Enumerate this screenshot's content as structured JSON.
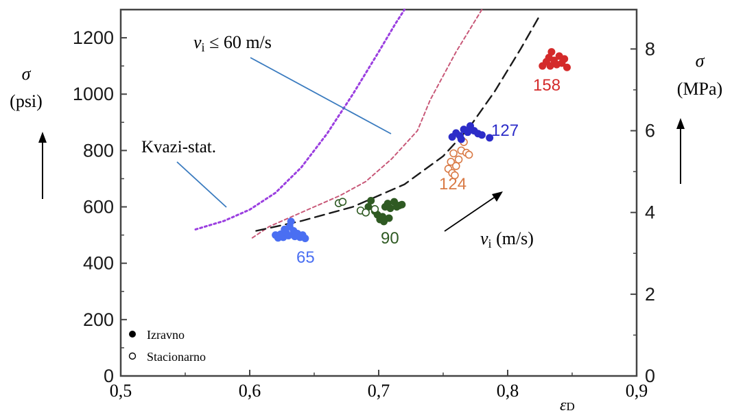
{
  "chart_data": {
    "type": "scatter",
    "xlabel": "ε",
    "xlabel_sub": "D",
    "xlim": [
      0.5,
      0.9
    ],
    "x_ticks": [
      0.5,
      0.6,
      0.7,
      0.8,
      0.9
    ],
    "x_tick_labels": [
      "0,5",
      "0,6",
      "0,7",
      "0,8",
      "0,9"
    ],
    "y_left": {
      "symbol": "σ",
      "unit": "(psi)",
      "lim": [
        0,
        1300
      ],
      "ticks": [
        0,
        200,
        400,
        600,
        800,
        1000,
        1200
      ],
      "tick_labels": [
        "0",
        "200",
        "400",
        "600",
        "800",
        "1000",
        "1200"
      ]
    },
    "y_right": {
      "symbol": "σ",
      "unit": "(MPa)",
      "ticks": [
        0,
        2,
        4,
        6,
        8
      ],
      "tick_labels": [
        "0",
        "2",
        "4",
        "6",
        "8"
      ]
    },
    "annotations": {
      "vi_limit": {
        "prefix": "v",
        "sub": "i",
        "suffix": " ≤ 60 m/s"
      },
      "kvazi": "Kvazi-stat.",
      "vi_arrow": {
        "prefix": "v",
        "sub": "i",
        "suffix": " (m/s)"
      }
    },
    "legend": {
      "position": "bottom-left",
      "entries": [
        {
          "label": "Izravno",
          "marker": "filled"
        },
        {
          "label": "Stacionarno",
          "marker": "open"
        }
      ]
    },
    "curves": [
      {
        "style": "dotted",
        "color": "#9b3fe0",
        "x": [
          0.558,
          0.58,
          0.6,
          0.62,
          0.64,
          0.66,
          0.68,
          0.7,
          0.713,
          0.72
        ],
        "y": [
          520,
          550,
          590,
          650,
          740,
          860,
          1000,
          1150,
          1250,
          1300
        ]
      },
      {
        "style": "short-dash",
        "color": "#c85878",
        "x": [
          0.602,
          0.615,
          0.63,
          0.65,
          0.67,
          0.69,
          0.71,
          0.73,
          0.74,
          0.76,
          0.78
        ],
        "y": [
          490,
          530,
          560,
          600,
          640,
          690,
          770,
          870,
          980,
          1150,
          1300
        ]
      },
      {
        "style": "long-dash",
        "color": "#1a1a1a",
        "x": [
          0.605,
          0.64,
          0.68,
          0.72,
          0.75,
          0.77,
          0.79,
          0.81,
          0.825
        ],
        "y": [
          515,
          550,
          600,
          680,
          780,
          880,
          1010,
          1160,
          1280
        ]
      }
    ],
    "groups": [
      {
        "label": "65",
        "color": "#4a6ff2",
        "filled": [
          [
            0.62,
            500
          ],
          [
            0.622,
            490
          ],
          [
            0.624,
            503
          ],
          [
            0.626,
            492
          ],
          [
            0.628,
            510
          ],
          [
            0.63,
            498
          ],
          [
            0.631,
            530
          ],
          [
            0.632,
            548
          ],
          [
            0.634,
            515
          ],
          [
            0.635,
            495
          ],
          [
            0.637,
            505
          ],
          [
            0.639,
            492
          ],
          [
            0.641,
            500
          ],
          [
            0.643,
            488
          ],
          [
            0.627,
            520
          ]
        ],
        "open": []
      },
      {
        "label": "90",
        "color": "#2f5a23",
        "filled": [
          [
            0.692,
            600
          ],
          [
            0.694,
            622
          ],
          [
            0.697,
            585
          ],
          [
            0.699,
            572
          ],
          [
            0.701,
            555
          ],
          [
            0.703,
            565
          ],
          [
            0.705,
            600
          ],
          [
            0.707,
            612
          ],
          [
            0.709,
            595
          ],
          [
            0.712,
            618
          ],
          [
            0.714,
            600
          ],
          [
            0.716,
            605
          ],
          [
            0.704,
            548
          ],
          [
            0.708,
            560
          ],
          [
            0.718,
            608
          ]
        ],
        "open": [
          [
            0.669,
            613
          ],
          [
            0.672,
            618
          ],
          [
            0.686,
            587
          ],
          [
            0.69,
            580
          ],
          [
            0.697,
            592
          ]
        ]
      },
      {
        "label": "124",
        "color": "#d97a45",
        "open": [
          [
            0.754,
            735
          ],
          [
            0.756,
            760
          ],
          [
            0.758,
            790
          ],
          [
            0.76,
            745
          ],
          [
            0.762,
            768
          ],
          [
            0.764,
            800
          ],
          [
            0.766,
            830
          ],
          [
            0.768,
            792
          ],
          [
            0.77,
            785
          ],
          [
            0.757,
            720
          ],
          [
            0.759,
            712
          ]
        ],
        "filled": []
      },
      {
        "label": "127",
        "color": "#2c2cc8",
        "filled": [
          [
            0.757,
            848
          ],
          [
            0.76,
            862
          ],
          [
            0.763,
            852
          ],
          [
            0.766,
            875
          ],
          [
            0.769,
            865
          ],
          [
            0.771,
            887
          ],
          [
            0.774,
            870
          ],
          [
            0.777,
            860
          ],
          [
            0.78,
            855
          ],
          [
            0.786,
            845
          ],
          [
            0.764,
            840
          ]
        ],
        "open": []
      },
      {
        "label": "158",
        "color": "#d42a2a",
        "filled": [
          [
            0.827,
            1100
          ],
          [
            0.83,
            1115
          ],
          [
            0.832,
            1130
          ],
          [
            0.834,
            1150
          ],
          [
            0.836,
            1120
          ],
          [
            0.838,
            1105
          ],
          [
            0.84,
            1135
          ],
          [
            0.842,
            1110
          ],
          [
            0.844,
            1125
          ],
          [
            0.846,
            1095
          ],
          [
            0.833,
            1100
          ]
        ],
        "open": []
      }
    ]
  }
}
